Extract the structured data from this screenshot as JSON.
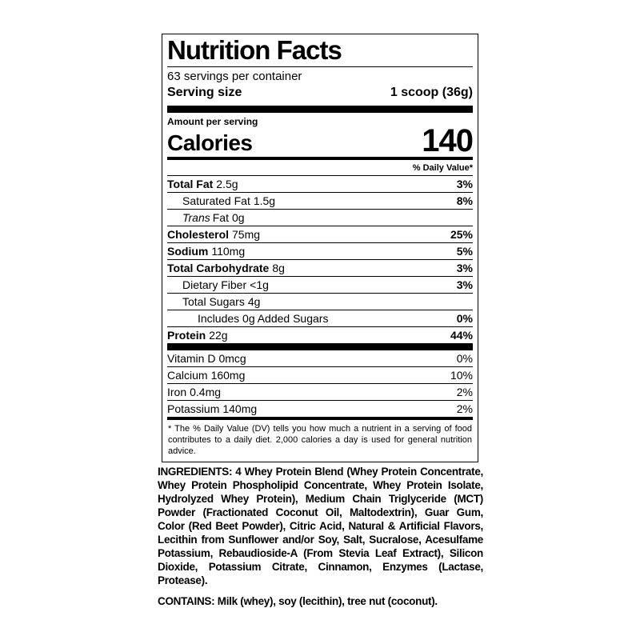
{
  "label": {
    "title": "Nutrition Facts",
    "servings_per_container": "63 servings per container",
    "serving_size": {
      "label": "Serving size",
      "value": "1 scoop (36g)"
    },
    "amount_per_serving": "Amount per serving",
    "calories": {
      "label": "Calories",
      "value": "140"
    },
    "daily_value_header": "% Daily Value*",
    "nutrients": [
      {
        "name": "Total Fat",
        "amount": "2.5g",
        "dv": "3%"
      },
      {
        "name": "Saturated Fat",
        "amount": "1.5g",
        "dv": "8%"
      },
      {
        "name_italic": "Trans",
        "name": "Fat",
        "amount": "0g",
        "dv": ""
      },
      {
        "name": "Cholesterol",
        "amount": "75mg",
        "dv": "25%"
      },
      {
        "name": "Sodium",
        "amount": "110mg",
        "dv": "5%"
      },
      {
        "name": "Total Carbohydrate",
        "amount": "8g",
        "dv": "3%"
      },
      {
        "name": "Dietary Fiber",
        "amount": "<1g",
        "dv": "3%"
      },
      {
        "name": "Total Sugars",
        "amount": "4g",
        "dv": ""
      },
      {
        "name": "Includes 0g Added Sugars",
        "amount": "",
        "dv": "0%"
      },
      {
        "name": "Protein",
        "amount": "22g",
        "dv": "44%"
      }
    ],
    "vitamins": [
      {
        "name": "Vitamin D",
        "amount": "0mcg",
        "dv": "0%"
      },
      {
        "name": "Calcium",
        "amount": "160mg",
        "dv": "10%"
      },
      {
        "name": "Iron",
        "amount": "0.4mg",
        "dv": "2%"
      },
      {
        "name": "Potassium",
        "amount": "140mg",
        "dv": "2%"
      }
    ],
    "footnote": "* The % Daily Value (DV) tells you how much a nutrient in a serving of food contributes to a daily diet. 2,000 calories a day is used for general nutrition advice."
  },
  "ingredients": {
    "label": "INGREDIENTS:",
    "text": " 4 Whey Protein Blend (Whey Protein Concentrate, Whey Protein Phospholipid Concentrate, Whey Protein Isolate, Hydrolyzed Whey Protein), Medium Chain Triglyceride (MCT) Powder (Fractionated Coconut Oil, Maltodextrin), Guar Gum, Color (Red Beet Powder), Citric Acid, Natural & Artificial Flavors, Lecithin from Sunflower and/or Soy, Salt, Sucralose, Acesulfame Potassium, Rebaudioside-A (From Stevia Leaf Extract), Silicon Dioxide, Potassium Citrate, Cinnamon, Enzymes (Lactase, Protease).",
    "contains_label": "CONTAINS:",
    "contains_text": " Milk (whey), soy (lecithin), tree nut (coconut)."
  },
  "colors": {
    "ink": "#000000",
    "background": "#ffffff"
  }
}
